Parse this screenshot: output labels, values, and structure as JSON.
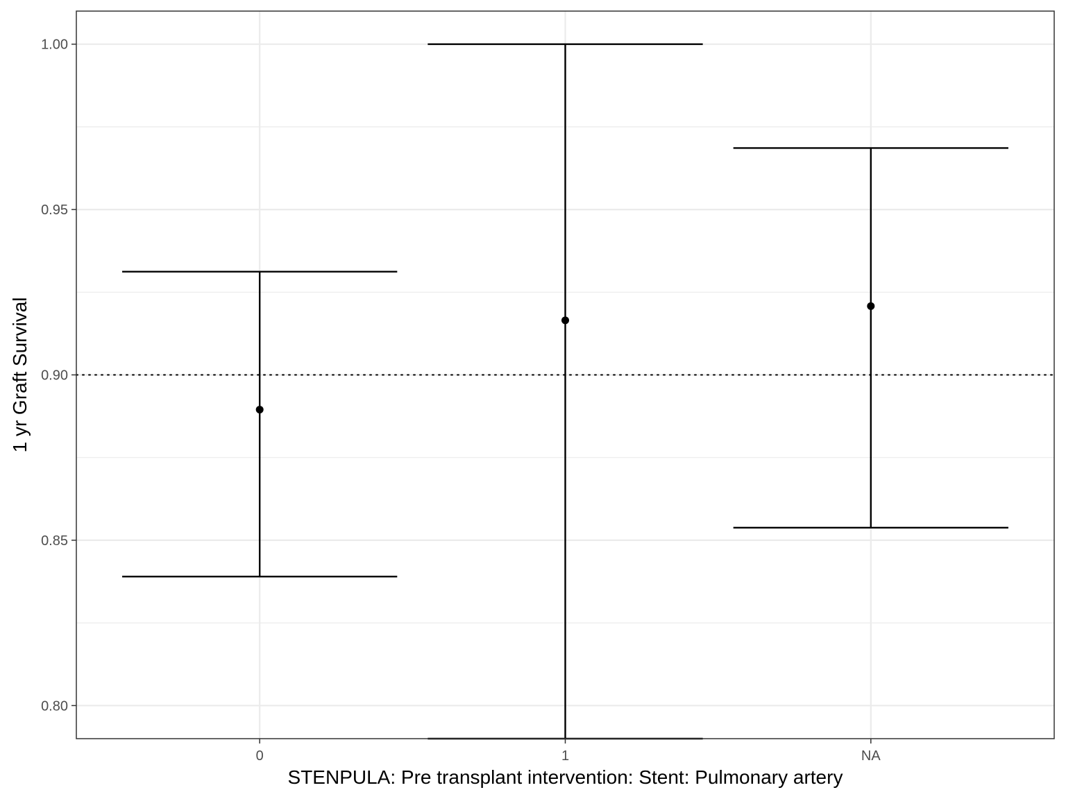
{
  "chart_data": {
    "type": "scatter",
    "subtype": "point-with-errorbars",
    "title": "",
    "xlabel": "STENPULA: Pre transplant intervention: Stent: Pulmonary artery",
    "ylabel": "1 yr Graft Survival",
    "categories": [
      "0",
      "1",
      "NA"
    ],
    "points": [
      {
        "category": "0",
        "estimate": 0.8895,
        "lower": 0.839,
        "upper": 0.9312
      },
      {
        "category": "1",
        "estimate": 0.9165,
        "lower": 0.79,
        "upper": 1.0
      },
      {
        "category": "NA",
        "estimate": 0.9208,
        "lower": 0.8538,
        "upper": 0.9686
      }
    ],
    "reference_line": {
      "y": 0.9,
      "style": "dotted"
    },
    "ylim": [
      0.79,
      1.01
    ],
    "yticks": [
      0.8,
      0.85,
      0.9,
      0.95,
      1.0
    ],
    "ytick_labels": [
      "0.80",
      "0.85",
      "0.90",
      "0.95",
      "1.00"
    ],
    "grid": true,
    "legend": "none",
    "colors": {
      "marks": "#000000",
      "grid": "#ebebeb",
      "panel_border": "#333333"
    }
  }
}
